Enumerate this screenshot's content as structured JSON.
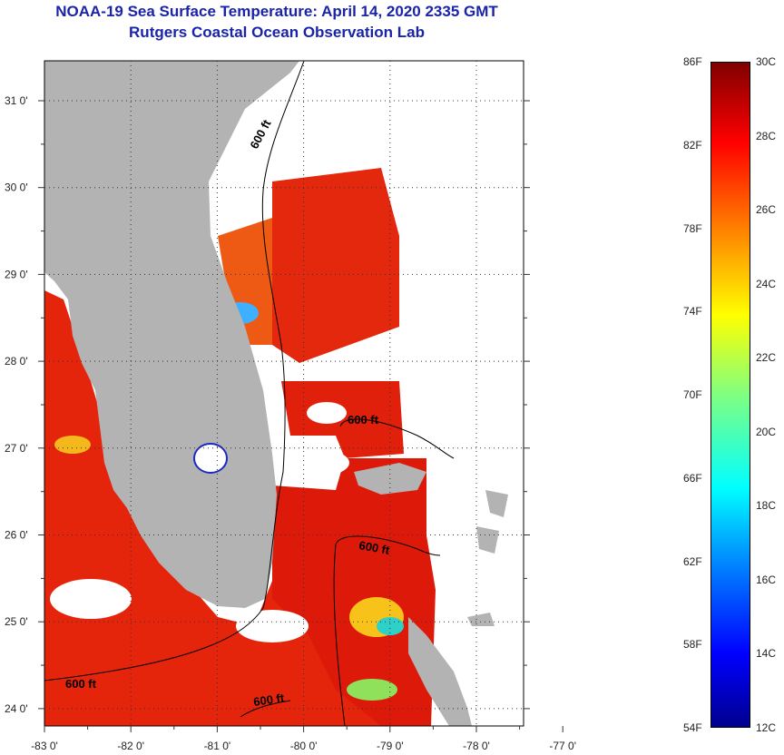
{
  "title": {
    "line1": "NOAA-19 Sea Surface Temperature:  April 14, 2020 2335 GMT",
    "line2": "Rutgers Coastal Ocean Observation Lab"
  },
  "map": {
    "longitude_labels": [
      "-83 0'",
      "-82 0'",
      "-81 0'",
      "-80 0'",
      "-79 0'",
      "-78 0'",
      "-77 0'"
    ],
    "latitude_labels": [
      "31 0'",
      "30 0'",
      "29 0'",
      "28 0'",
      "27 0'",
      "26 0'",
      "25 0'",
      "24 0'"
    ],
    "contour_labels": [
      "600 ft",
      "600 ft",
      "600 ft",
      "600 ft",
      "600 ft"
    ],
    "colors": {
      "land": "#b3b3b3",
      "water_warm": "#e5240c",
      "water_hot": "#d21008",
      "cloud": "#ffffff"
    }
  },
  "colorbar": {
    "fahrenheit": [
      "86F",
      "82F",
      "78F",
      "74F",
      "70F",
      "66F",
      "62F",
      "58F",
      "54F"
    ],
    "celsius": [
      "30C",
      "28C",
      "26C",
      "24C",
      "22C",
      "20C",
      "18C",
      "16C",
      "14C",
      "12C"
    ],
    "range_c": [
      12,
      30
    ],
    "colormap": "jet"
  }
}
